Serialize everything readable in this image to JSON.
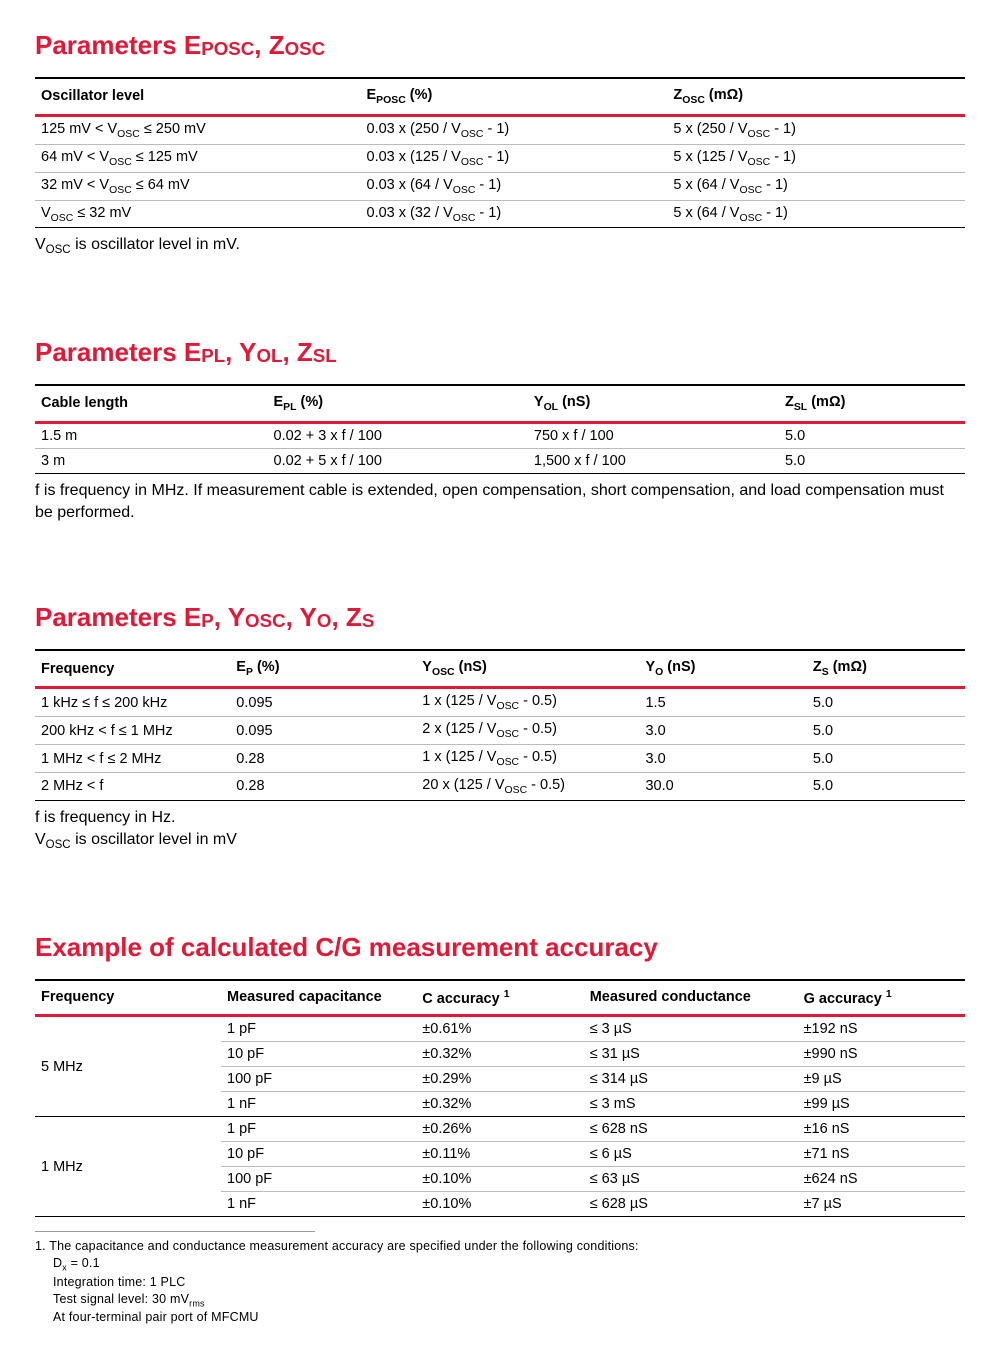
{
  "colors": {
    "accent": "#e21836",
    "text": "#000000",
    "background": "#ffffff"
  },
  "section1": {
    "title_html": "Parameters E<span class=\"sm\">POSC</span>, Z<span class=\"sm\">OSC</span>",
    "headers": [
      "Oscillator level",
      "E<span class=\"sub\">POSC</span> (%)",
      "Z<span class=\"sub\">OSC</span> (mΩ)"
    ],
    "col_widths": [
      "35%",
      "33%",
      "32%"
    ],
    "rows": [
      [
        "125 mV < V<span class=\"sub\">OSC</span> ≤ 250 mV",
        "0.03 x (250 / V<span class=\"sub\">OSC</span> - 1)",
        "5 x (250 / V<span class=\"sub\">OSC</span> - 1)"
      ],
      [
        "64 mV < V<span class=\"sub\">OSC</span> ≤ 125 mV",
        "0.03 x (125 / V<span class=\"sub\">OSC</span> - 1)",
        "5 x (125 / V<span class=\"sub\">OSC</span> - 1)"
      ],
      [
        "32 mV < V<span class=\"sub\">OSC</span> ≤ 64 mV",
        "0.03 x (64 / V<span class=\"sub\">OSC</span> - 1)",
        "5 x (64 / V<span class=\"sub\">OSC</span> - 1)"
      ],
      [
        "V<span class=\"sub\">OSC</span> ≤ 32 mV",
        "0.03 x (32 / V<span class=\"sub\">OSC</span> - 1)",
        "5 x (64 / V<span class=\"sub\">OSC</span> - 1)"
      ]
    ],
    "note_html": "V<span class=\"sub\">OSC</span> is oscillator level in mV."
  },
  "section2": {
    "title_html": "Parameters E<span class=\"sm\">PL</span>, Y<span class=\"sm\">OL</span>, Z<span class=\"sm\">SL</span>",
    "headers": [
      "Cable length",
      "E<span class=\"sub\">PL</span> (%)",
      "Y<span class=\"sub\">OL</span> (nS)",
      "Z<span class=\"sub\">SL</span> (mΩ)"
    ],
    "col_widths": [
      "25%",
      "28%",
      "27%",
      "20%"
    ],
    "rows": [
      [
        "1.5 m",
        "0.02 + 3 x f / 100",
        "750 x f / 100",
        "5.0"
      ],
      [
        "3 m",
        "0.02 + 5 x f / 100",
        "1,500 x f / 100",
        "5.0"
      ]
    ],
    "note_html": "f is frequency in MHz. If measurement cable is extended, open compensation, short compensation, and load compensation must be performed."
  },
  "section3": {
    "title_html": "Parameters E<span class=\"sm\">P</span>, Y<span class=\"sm\">OSC</span>, Y<span class=\"sm\">O</span>, Z<span class=\"sm\">S</span>",
    "headers": [
      "Frequency",
      "E<span class=\"sub\">P</span> (%)",
      "Y<span class=\"sub\">OSC</span> (nS)",
      "Y<span class=\"sub\">O</span> (nS)",
      "Z<span class=\"sub\">S</span> (mΩ)"
    ],
    "col_widths": [
      "21%",
      "20%",
      "24%",
      "18%",
      "17%"
    ],
    "rows": [
      [
        "1 kHz ≤ f ≤ 200 kHz",
        "0.095",
        "1 x (125 / V<span class=\"sub\">OSC</span> - 0.5)",
        "1.5",
        "5.0"
      ],
      [
        "200 kHz < f ≤ 1 MHz",
        "0.095",
        "2 x (125 / V<span class=\"sub\">OSC</span> - 0.5)",
        "3.0",
        "5.0"
      ],
      [
        "1 MHz < f ≤ 2 MHz",
        "0.28",
        "1 x (125 / V<span class=\"sub\">OSC</span> - 0.5)",
        "3.0",
        "5.0"
      ],
      [
        "2 MHz < f",
        "0.28",
        "20 x (125 / V<span class=\"sub\">OSC</span> - 0.5)",
        "30.0",
        "5.0"
      ]
    ],
    "note_html": "f is frequency in Hz.<br>V<span class=\"sub\">OSC</span> is oscillator level in mV"
  },
  "section4": {
    "title_html": "Example of calculated C/G measurement accuracy",
    "headers": [
      "Frequency",
      "Measured capacitance",
      "C accuracy <span class=\"sup\">1</span>",
      "Measured conductance",
      "G accuracy <span class=\"sup\">1</span>"
    ],
    "col_widths": [
      "20%",
      "21%",
      "18%",
      "23%",
      "18%"
    ],
    "groups": [
      {
        "freq": "5 MHz",
        "rows": [
          [
            "1 pF",
            "±0.61%",
            "≤ 3 µS",
            "±192 nS"
          ],
          [
            "10 pF",
            "±0.32%",
            "≤ 31 µS",
            "±990 nS"
          ],
          [
            "100 pF",
            "±0.29%",
            "≤ 314 µS",
            "±9 µS"
          ],
          [
            "1 nF",
            "±0.32%",
            "≤ 3 mS",
            "±99 µS"
          ]
        ]
      },
      {
        "freq": "1 MHz",
        "rows": [
          [
            "1 pF",
            "±0.26%",
            "≤ 628 nS",
            "±16 nS"
          ],
          [
            "10 pF",
            "±0.11%",
            "≤ 6 µS",
            "±71 nS"
          ],
          [
            "100 pF",
            "±0.10%",
            "≤ 63 µS",
            "±624 nS"
          ],
          [
            "1 nF",
            "±0.10%",
            "≤ 628 µS",
            "±7 µS"
          ]
        ]
      }
    ]
  },
  "footnote": {
    "lead": "1. The capacitance and conductance measurement accuracy are specified under the following conditions:",
    "lines": [
      "D<span class=\"sub\">x</span> = 0.1",
      "Integration time: 1 PLC",
      "Test signal level: 30 mV<span class=\"sub\">rms</span>",
      "At four-terminal pair port of MFCMU"
    ]
  }
}
